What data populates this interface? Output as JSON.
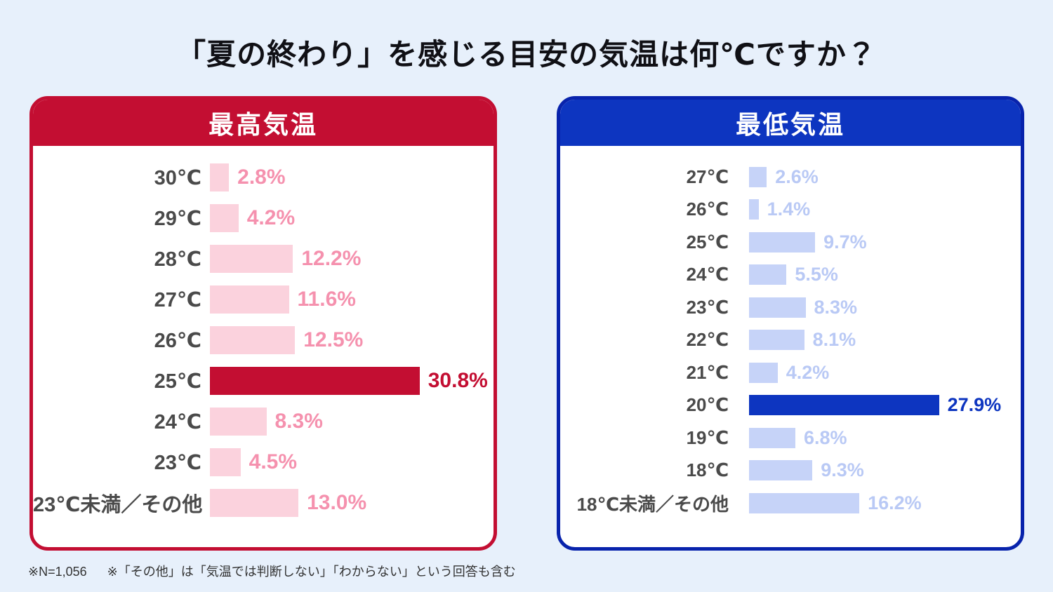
{
  "title": "「夏の終わり」を感じる目安の気温は何℃ですか？",
  "colors": {
    "background": "#E7F0FB",
    "title_text": "#101015",
    "label_text": "#4A4A4A",
    "footer_text": "#333333",
    "red_accent": "#C30E32",
    "red_border": "#C30E32",
    "pink_bar": "#FBD2DD",
    "pink_value_text": "#F591AE",
    "blue_accent": "#0D35C0",
    "blue_border": "#0823AC",
    "lightblue_bar": "#C6D3F8",
    "lightblue_value_text": "#B9C9F5"
  },
  "footer": {
    "note1": "※N=1,056",
    "note2": "※「その他」は「気温では判断しない」「わからない」という回答も含む"
  },
  "chart_data": [
    {
      "type": "bar",
      "orientation": "horizontal",
      "title": "最高気温",
      "unit": "%",
      "grid": false,
      "value_labels_shown": true,
      "categories": [
        "30℃",
        "29℃",
        "28℃",
        "27℃",
        "26℃",
        "25℃",
        "24℃",
        "23℃",
        "23℃未満／その他"
      ],
      "values": [
        2.8,
        4.2,
        12.2,
        11.6,
        12.5,
        30.8,
        8.3,
        4.5,
        13.0
      ],
      "value_labels": [
        "2.8%",
        "4.2%",
        "12.2%",
        "11.6%",
        "12.5%",
        "30.8%",
        "8.3%",
        "4.5%",
        "13.0%"
      ],
      "highlight_index": 5,
      "colors": {
        "accent": "#C30E32",
        "border": "#C30E32",
        "bar": "#FBD2DD",
        "value_text": "#F591AE"
      }
    },
    {
      "type": "bar",
      "orientation": "horizontal",
      "title": "最低気温",
      "unit": "%",
      "grid": false,
      "value_labels_shown": true,
      "categories": [
        "27℃",
        "26℃",
        "25℃",
        "24℃",
        "23℃",
        "22℃",
        "21℃",
        "20℃",
        "19℃",
        "18℃",
        "18℃未満／その他"
      ],
      "values": [
        2.6,
        1.4,
        9.7,
        5.5,
        8.3,
        8.1,
        4.2,
        27.9,
        6.8,
        9.3,
        16.2
      ],
      "value_labels": [
        "2.6%",
        "1.4%",
        "9.7%",
        "5.5%",
        "8.3%",
        "8.1%",
        "4.2%",
        "27.9%",
        "6.8%",
        "9.3%",
        "16.2%"
      ],
      "highlight_index": 7,
      "colors": {
        "accent": "#0D35C0",
        "border": "#0823AC",
        "bar": "#C6D3F8",
        "value_text": "#B9C9F5"
      }
    }
  ]
}
